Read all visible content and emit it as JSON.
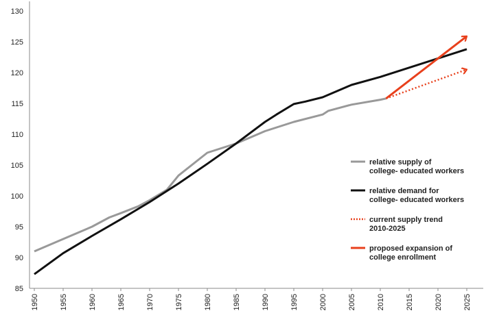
{
  "chart_data": {
    "type": "line",
    "title": "",
    "xlabel": "",
    "ylabel": "",
    "xlim": [
      1950,
      2025
    ],
    "ylim": [
      85,
      130
    ],
    "x_ticks": [
      "1950",
      "1955",
      "1960",
      "1965",
      "1970",
      "1975",
      "1980",
      "1985",
      "1990",
      "1995",
      "2000",
      "2005",
      "2010",
      "2015",
      "2020",
      "2025"
    ],
    "y_ticks": [
      "85",
      "90",
      "95",
      "100",
      "105",
      "110",
      "115",
      "120",
      "125",
      "130"
    ],
    "grid": false,
    "legend_position": "right",
    "series": [
      {
        "name": "relative supply of college- educated workers",
        "color": "#999999",
        "style": "solid",
        "x": [
          1950,
          1955,
          1960,
          1963,
          1965,
          1968,
          1970,
          1973,
          1975,
          1980,
          1985,
          1990,
          1995,
          2000,
          2001,
          2005,
          2010,
          2011
        ],
        "y": [
          91.0,
          93.0,
          95.0,
          96.5,
          97.2,
          98.3,
          99.3,
          101.0,
          103.3,
          107.0,
          108.5,
          110.5,
          112.0,
          113.2,
          113.8,
          114.8,
          115.6,
          115.8
        ]
      },
      {
        "name": "relative demand for college- educated workers",
        "color": "#111111",
        "style": "solid",
        "x": [
          1950,
          1955,
          1960,
          1965,
          1970,
          1975,
          1980,
          1985,
          1990,
          1992,
          1995,
          1997,
          2000,
          2005,
          2010,
          2015,
          2020,
          2025
        ],
        "y": [
          87.3,
          90.7,
          93.5,
          96.2,
          99.0,
          102.0,
          105.2,
          108.5,
          112.0,
          113.2,
          114.9,
          115.3,
          116.0,
          118.0,
          119.3,
          120.8,
          122.3,
          123.8
        ]
      },
      {
        "name": "current supply trend 2010-2025",
        "color": "#E8401C",
        "style": "dotted",
        "x": [
          2011,
          2025
        ],
        "y": [
          115.8,
          120.5
        ]
      },
      {
        "name": "proposed expansion of college enrollment",
        "color": "#E8401C",
        "style": "solid-arrow",
        "x": [
          2011,
          2025
        ],
        "y": [
          115.8,
          125.9
        ]
      }
    ],
    "legend": [
      {
        "lines": [
          "relative supply of",
          "college- educated workers"
        ],
        "color": "#999999",
        "style": "solid"
      },
      {
        "lines": [
          "relative demand for",
          "college- educated workers"
        ],
        "color": "#111111",
        "style": "solid"
      },
      {
        "lines": [
          "current supply trend",
          "2010-2025"
        ],
        "color": "#E8401C",
        "style": "dotted"
      },
      {
        "lines": [
          "proposed expansion of",
          "college enrollment"
        ],
        "color": "#E8401C",
        "style": "solid"
      }
    ]
  }
}
